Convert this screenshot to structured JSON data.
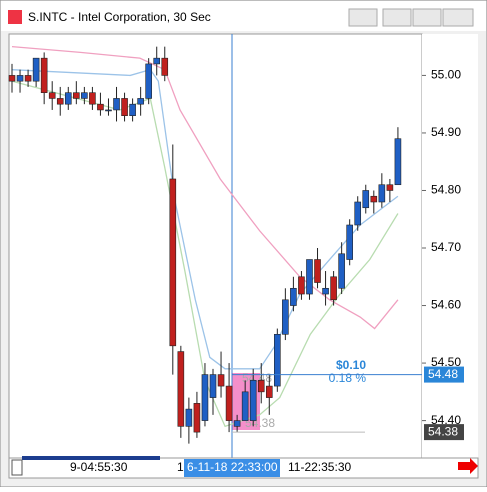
{
  "window": {
    "title": "S.INTC - Intel Corporation, 30 Sec"
  },
  "chart_data": {
    "type": "candlestick",
    "up_color": "#1f5fc4",
    "down_color": "#c0201e",
    "open": [
      55.0,
      54.99,
      55.0,
      54.99,
      55.03,
      54.97,
      54.96,
      54.95,
      54.97,
      54.96,
      54.97,
      54.95,
      54.94,
      54.94,
      54.96,
      54.93,
      54.95,
      54.96,
      55.02,
      55.03,
      54.82,
      54.52,
      54.39,
      54.43,
      54.4,
      54.44,
      54.48,
      54.46,
      54.39,
      54.4,
      54.4,
      54.47,
      54.46,
      54.46,
      54.55,
      54.6,
      54.65,
      54.62,
      54.68,
      54.62,
      54.65,
      54.63,
      54.68,
      54.74,
      54.77,
      54.79,
      54.78,
      54.81,
      54.81
    ],
    "high": [
      55.02,
      55.01,
      55.01,
      55.03,
      55.04,
      54.99,
      54.98,
      54.98,
      54.99,
      54.98,
      54.98,
      54.97,
      54.96,
      54.98,
      54.97,
      54.96,
      54.98,
      55.03,
      55.05,
      55.05,
      54.88,
      54.53,
      54.44,
      54.45,
      54.5,
      54.49,
      54.52,
      54.5,
      54.41,
      54.47,
      54.49,
      54.5,
      54.48,
      54.56,
      54.63,
      54.65,
      54.66,
      54.68,
      54.7,
      54.66,
      54.66,
      54.71,
      54.75,
      54.79,
      54.81,
      54.8,
      54.83,
      54.82,
      54.91
    ],
    "low": [
      54.97,
      54.97,
      54.98,
      54.98,
      54.95,
      54.94,
      54.93,
      54.94,
      54.95,
      54.95,
      54.94,
      54.93,
      54.93,
      54.92,
      54.92,
      54.92,
      54.93,
      54.95,
      55.0,
      54.99,
      54.48,
      54.37,
      54.36,
      54.37,
      54.39,
      54.41,
      54.44,
      54.38,
      54.38,
      54.4,
      54.39,
      54.43,
      54.41,
      54.45,
      54.54,
      54.59,
      54.61,
      54.61,
      54.63,
      54.6,
      54.6,
      54.62,
      54.67,
      54.73,
      54.76,
      54.76,
      54.77,
      54.78,
      54.81
    ],
    "close": [
      54.99,
      55.0,
      54.99,
      55.03,
      54.97,
      54.96,
      54.95,
      54.97,
      54.96,
      54.97,
      54.95,
      54.94,
      54.94,
      54.96,
      54.93,
      54.95,
      54.96,
      55.02,
      55.03,
      55.0,
      54.53,
      54.39,
      54.42,
      54.38,
      54.48,
      54.48,
      54.46,
      54.4,
      54.4,
      54.45,
      54.47,
      54.45,
      54.44,
      54.55,
      54.61,
      54.63,
      54.62,
      54.68,
      54.64,
      54.63,
      54.61,
      54.69,
      54.74,
      54.78,
      54.8,
      54.78,
      54.81,
      54.8,
      54.89
    ],
    "moving_averages": [
      {
        "color": "#9cc3e8",
        "x": [
          0,
          14.7,
          17.2,
          18.2,
          20.3,
          22.8,
          24.6,
          26.5,
          30.8,
          32.7,
          35.8,
          39.5,
          43.3,
          48
        ],
        "values": [
          55.01,
          55.0,
          55.01,
          54.99,
          54.78,
          54.61,
          54.51,
          54.49,
          54.49,
          54.53,
          54.62,
          54.68,
          54.74,
          54.79
        ]
      },
      {
        "color": "#b8dcb0",
        "x": [
          0,
          13.4,
          17.2,
          19,
          21.5,
          24,
          26.5,
          30.8,
          33.3,
          37.1,
          40.8,
          44.5,
          48
        ],
        "values": [
          54.99,
          54.94,
          54.96,
          54.84,
          54.66,
          54.47,
          54.39,
          54.41,
          54.44,
          54.55,
          54.62,
          54.68,
          54.76
        ]
      },
      {
        "color": "#f0a0c0",
        "x": [
          0,
          8.5,
          15.9,
          19,
          20.9,
          25.9,
          30.8,
          35.8,
          39.5,
          43.3,
          45.1,
          48
        ],
        "values": [
          55.05,
          55.04,
          55.03,
          55.01,
          54.94,
          54.82,
          54.73,
          54.65,
          54.61,
          54.58,
          54.56,
          54.61
        ]
      }
    ],
    "ylim": [
      54.335,
      55.072
    ],
    "yticks": [
      {
        "value": 55,
        "label": "55.00"
      },
      {
        "value": 54.9,
        "label": "54.90"
      },
      {
        "value": 54.8,
        "label": "54.80"
      },
      {
        "value": 54.7,
        "label": "54.70"
      },
      {
        "value": 54.6,
        "label": "54.60"
      },
      {
        "value": 54.5,
        "label": "54.50"
      },
      {
        "value": 54.4,
        "label": "54.40"
      }
    ],
    "crosshair": {
      "value": 54.48,
      "label": "54.48"
    },
    "last_price": {
      "value": 54.38,
      "label": "54.38"
    },
    "measure": {
      "change": "$0.10",
      "percent": "0.18 %",
      "start_label": "54.38",
      "end_label": "54.48"
    },
    "x_labels": [
      "9-04:55:30",
      "1",
      "6-11-18 22:33:00",
      "11-22:35:30"
    ]
  }
}
